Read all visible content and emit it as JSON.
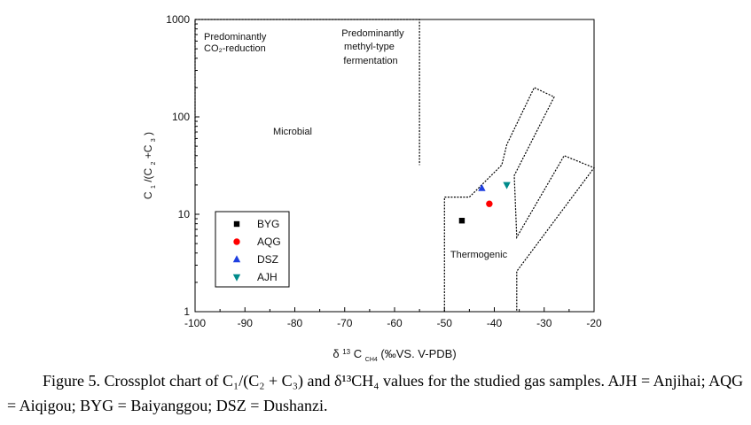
{
  "chart_data": {
    "type": "scatter",
    "x_axis": {
      "label_parts": {
        "delta": "δ",
        "sup": "13",
        "c": "C",
        "sub": "CH4",
        "rest": "(‰VS. V-PDB)"
      },
      "range": [
        -100,
        -20
      ],
      "ticks": [
        -100,
        -90,
        -80,
        -70,
        -60,
        -50,
        -40,
        -30,
        -20
      ]
    },
    "y_axis": {
      "label_parts": {
        "c1": "C",
        "s1": "1",
        "mid": "/(C",
        "s2": "2",
        "plus": "+C",
        "s3": "3",
        "close": ")"
      },
      "scale": "log",
      "range": [
        1,
        1000
      ],
      "ticks": [
        1,
        10,
        100,
        1000
      ]
    },
    "series": [
      {
        "name": "BYG",
        "marker": "square",
        "color": "#000000",
        "points": [
          [
            -46.5,
            8.6
          ]
        ]
      },
      {
        "name": "AQG",
        "marker": "circle",
        "color": "#ff0000",
        "points": [
          [
            -41.0,
            12.8
          ]
        ]
      },
      {
        "name": "DSZ",
        "marker": "triangle-up",
        "color": "#1f3fe0",
        "points": [
          [
            -42.5,
            18.5
          ]
        ]
      },
      {
        "name": "AJH",
        "marker": "triangle-down",
        "color": "#008b8b",
        "points": [
          [
            -37.5,
            20.0
          ]
        ]
      }
    ],
    "regions": [
      {
        "id": "microbial",
        "label": "Microbial",
        "polygon": [
          [
            -100,
            32
          ],
          [
            -100,
            1000
          ],
          [
            -55,
            1000
          ],
          [
            -55,
            32
          ]
        ]
      },
      {
        "id": "thermogenic",
        "label": "Thermogenic",
        "polygon": [
          [
            -50,
            1
          ],
          [
            -50,
            15
          ],
          [
            -45,
            15
          ],
          [
            -38.5,
            32
          ],
          [
            -37.5,
            52
          ],
          [
            -32,
            200
          ],
          [
            -28,
            160
          ],
          [
            -36,
            25
          ],
          [
            -35.5,
            5.8
          ],
          [
            -26,
            40
          ],
          [
            -20,
            30
          ],
          [
            -35.5,
            2.6
          ],
          [
            -35.5,
            1
          ]
        ]
      }
    ],
    "annotations": [
      {
        "lines": [
          "Predominantly",
          "CO₂-reduction"
        ]
      },
      {
        "lines": [
          "Predominantly",
          "methyl-type",
          "fermentation"
        ]
      }
    ],
    "legend": {
      "position": "lower-left"
    },
    "grid": false
  },
  "caption": "Figure 5. Crossplot chart of C₁/(C₂ + C₃) and δ¹³CH₄ values for the studied gas samples. AJH = Anjihai; AQG = Aiqigou; BYG = Baiyanggou; DSZ = Dushanzi."
}
